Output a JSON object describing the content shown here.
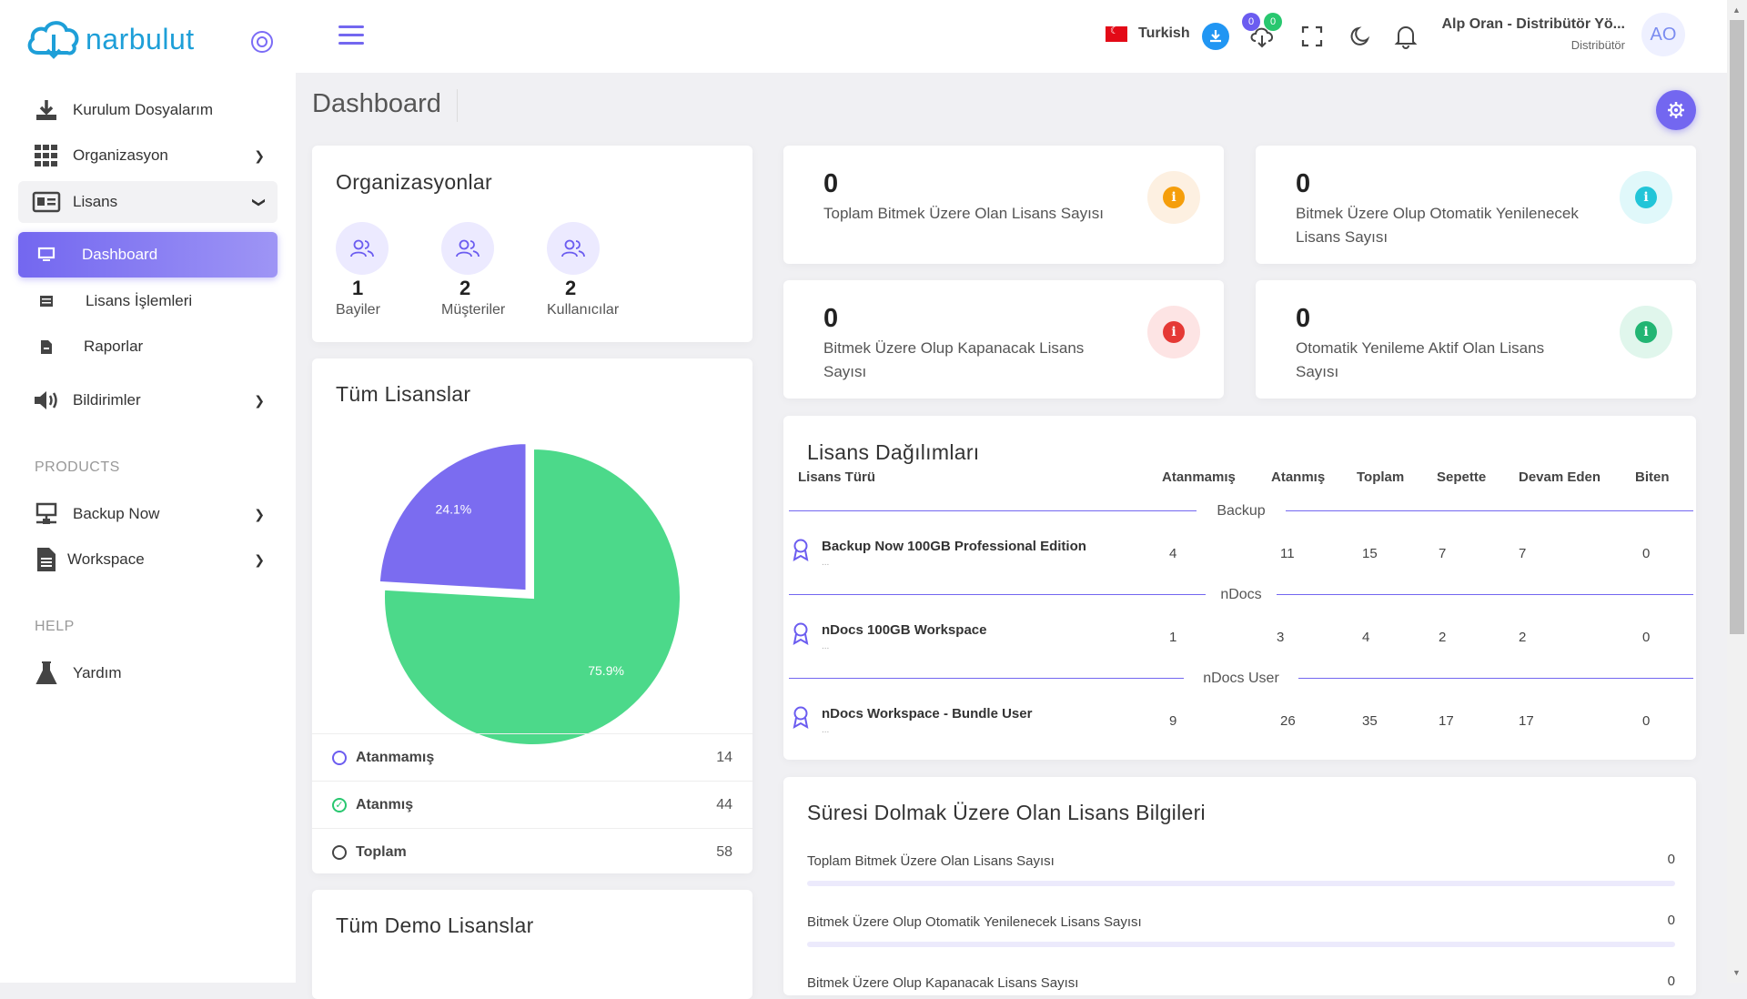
{
  "brand": {
    "logo_text": "narbulut"
  },
  "sidebar": {
    "items": [
      {
        "label": "Kurulum Dosyalarım",
        "icon": "download-icon"
      },
      {
        "label": "Organizasyon",
        "icon": "grid-icon"
      },
      {
        "label": "Lisans",
        "icon": "id-card-icon"
      },
      {
        "label": "Dashboard",
        "icon": "monitor-icon"
      },
      {
        "label": "Lisans İşlemleri",
        "icon": "list-icon"
      },
      {
        "label": "Raporlar",
        "icon": "file-pdf-icon"
      },
      {
        "label": "Bildirimler",
        "icon": "speaker-icon"
      },
      {
        "label": "Backup Now",
        "icon": "server-icon"
      },
      {
        "label": "Workspace",
        "icon": "document-icon"
      },
      {
        "label": "Yardım",
        "icon": "flask-icon"
      }
    ],
    "sections": {
      "products": "PRODUCTS",
      "help": "HELP"
    }
  },
  "header": {
    "language": "Turkish",
    "badge_purple": "0",
    "badge_green": "0",
    "user_name": "Alp Oran - Distribütör Yö...",
    "user_role": "Distribütör",
    "avatar_initials": "AO"
  },
  "page": {
    "title": "Dashboard"
  },
  "organizations": {
    "title": "Organizasyonlar",
    "stats": [
      {
        "count": "1",
        "label": "Bayiler"
      },
      {
        "count": "2",
        "label": "Müşteriler"
      },
      {
        "count": "2",
        "label": "Kullanıcılar"
      }
    ]
  },
  "stat_cards": [
    {
      "value": "0",
      "label": "Toplam Bitmek Üzere Olan Lisans Sayısı",
      "color": "#f59e0b",
      "bg": "#fdf0e1"
    },
    {
      "value": "0",
      "label": "Bitmek Üzere Olup Otomatik Yenilenecek Lisans Sayısı",
      "color": "#22c5d8",
      "bg": "#e0f8fa"
    },
    {
      "value": "0",
      "label": "Bitmek Üzere Olup Kapanacak Lisans Sayısı",
      "color": "#e53935",
      "bg": "#fde4e4"
    },
    {
      "value": "0",
      "label": "Otomatik Yenileme Aktif Olan Lisans Sayısı",
      "color": "#22b573",
      "bg": "#e0f6ec"
    }
  ],
  "all_licenses": {
    "title": "Tüm Lisanslar",
    "legend": [
      {
        "label": "Atanmamış",
        "value": "14"
      },
      {
        "label": "Atanmış",
        "value": "44"
      },
      {
        "label": "Toplam",
        "value": "58"
      }
    ]
  },
  "chart_data": {
    "type": "pie",
    "categories": [
      "Atanmamış",
      "Atanmış"
    ],
    "values": [
      24.1,
      75.9
    ],
    "value_labels": [
      "24.1%",
      "75.9%"
    ],
    "colors": [
      "#7b6cf0",
      "#4cd98a"
    ]
  },
  "demo_licenses": {
    "title": "Tüm Demo Lisanslar"
  },
  "distribution": {
    "title": "Lisans Dağılımları",
    "headers": [
      "Lisans Türü",
      "Atanmamış",
      "Atanmış",
      "Toplam",
      "Sepette",
      "Devam Eden",
      "Biten"
    ],
    "groups": [
      {
        "name": "Backup",
        "rows": [
          {
            "name": "Backup Now 100GB Professional Edition",
            "sub": "...",
            "values": [
              "4",
              "11",
              "15",
              "7",
              "7",
              "0"
            ]
          }
        ]
      },
      {
        "name": "nDocs",
        "rows": [
          {
            "name": "nDocs 100GB Workspace",
            "sub": "...",
            "values": [
              "1",
              "3",
              "4",
              "2",
              "2",
              "0"
            ]
          }
        ]
      },
      {
        "name": "nDocs User",
        "rows": [
          {
            "name": "nDocs Workspace - Bundle User",
            "sub": "...",
            "values": [
              "9",
              "26",
              "35",
              "17",
              "17",
              "0"
            ]
          }
        ]
      }
    ]
  },
  "expiring": {
    "title": "Süresi Dolmak Üzere Olan Lisans Bilgileri",
    "rows": [
      {
        "label": "Toplam Bitmek Üzere Olan Lisans Sayısı",
        "value": "0"
      },
      {
        "label": "Bitmek Üzere Olup Otomatik Yenilenecek Lisans Sayısı",
        "value": "0"
      },
      {
        "label": "Bitmek Üzere Olup Kapanacak Lisans Sayısı",
        "value": "0"
      }
    ]
  }
}
